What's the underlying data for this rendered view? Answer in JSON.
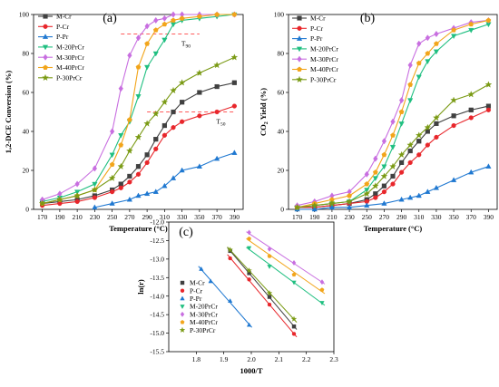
{
  "colors": {
    "M-Cr": "#404040",
    "P-Cr": "#e8262b",
    "P-Pr": "#1f78d1",
    "M-20PrCr": "#1fbf80",
    "M-30PrCr": "#c86ee0",
    "M-40PrCr": "#f2a51a",
    "P-30PrCr": "#7a9a14",
    "ref_line": "#ff5a5a"
  },
  "chart_data": [
    {
      "type": "line",
      "panel_label": "(a)",
      "xlabel": "Temperature (°C)",
      "ylabel": "1,2-DCE Conversion (%)",
      "xlim": [
        160,
        400
      ],
      "ylim": [
        0,
        100
      ],
      "xticks": [
        170,
        190,
        210,
        230,
        250,
        270,
        290,
        310,
        330,
        350,
        370,
        390
      ],
      "yticks": [
        0,
        20,
        40,
        60,
        80,
        100
      ],
      "legend_position": "top-left",
      "annotations": [
        {
          "text": "T90",
          "y": 90,
          "x_range": [
            260,
            350
          ]
        },
        {
          "text": "T50",
          "y": 50,
          "x_range": [
            290,
            390
          ]
        }
      ],
      "series": [
        {
          "name": "M-Cr",
          "marker": "square",
          "x": [
            170,
            190,
            210,
            230,
            250,
            260,
            270,
            280,
            290,
            300,
            310,
            320,
            330,
            350,
            370,
            390
          ],
          "y": [
            3,
            4,
            5,
            7,
            10,
            13,
            17,
            22,
            28,
            36,
            43,
            50,
            55,
            60,
            63,
            65
          ]
        },
        {
          "name": "P-Cr",
          "marker": "circle",
          "x": [
            170,
            190,
            210,
            230,
            250,
            260,
            270,
            280,
            290,
            300,
            310,
            320,
            330,
            350,
            370,
            390
          ],
          "y": [
            2,
            3,
            4,
            6,
            9,
            11,
            14,
            18,
            24,
            31,
            38,
            42,
            45,
            48,
            50,
            53
          ]
        },
        {
          "name": "P-Pr",
          "marker": "triangle-up",
          "x": [
            230,
            250,
            270,
            280,
            290,
            300,
            310,
            320,
            330,
            350,
            370,
            390
          ],
          "y": [
            1,
            3,
            5,
            7,
            8,
            9,
            12,
            16,
            20,
            22,
            26,
            29
          ]
        },
        {
          "name": "M-20PrCr",
          "marker": "triangle-down",
          "x": [
            170,
            190,
            210,
            230,
            250,
            260,
            270,
            280,
            290,
            300,
            310,
            320,
            330,
            350,
            370,
            390
          ],
          "y": [
            4,
            6,
            9,
            13,
            28,
            38,
            45,
            58,
            73,
            80,
            87,
            95,
            97,
            98,
            99,
            100
          ]
        },
        {
          "name": "M-30PrCr",
          "marker": "diamond",
          "x": [
            170,
            190,
            210,
            230,
            250,
            260,
            270,
            280,
            290,
            300,
            310,
            320,
            330,
            350,
            370,
            390
          ],
          "y": [
            5,
            8,
            13,
            21,
            40,
            62,
            79,
            88,
            94,
            97,
            98,
            100,
            100,
            100,
            100,
            100
          ]
        },
        {
          "name": "M-40PrCr",
          "marker": "pentagon",
          "x": [
            170,
            190,
            210,
            230,
            250,
            260,
            270,
            280,
            290,
            300,
            310,
            320,
            330,
            350,
            370,
            390
          ],
          "y": [
            3,
            5,
            7,
            10,
            23,
            33,
            46,
            73,
            85,
            92,
            95,
            97,
            98,
            99,
            100,
            100
          ]
        },
        {
          "name": "P-30PrCr",
          "marker": "star",
          "x": [
            170,
            190,
            210,
            230,
            250,
            260,
            270,
            280,
            290,
            300,
            310,
            320,
            330,
            350,
            370,
            390
          ],
          "y": [
            3,
            5,
            7,
            10,
            16,
            22,
            30,
            37,
            44,
            49,
            55,
            61,
            65,
            70,
            74,
            78
          ]
        }
      ]
    },
    {
      "type": "line",
      "panel_label": "(b)",
      "xlabel": "Temperature (°C)",
      "ylabel": "CO2 Yield (%)",
      "xlim": [
        160,
        400
      ],
      "ylim": [
        0,
        100
      ],
      "xticks": [
        170,
        190,
        210,
        230,
        250,
        270,
        290,
        310,
        330,
        350,
        370,
        390
      ],
      "yticks": [
        0,
        20,
        40,
        60,
        80,
        100
      ],
      "legend_position": "top-left",
      "series": [
        {
          "name": "M-Cr",
          "marker": "square",
          "x": [
            170,
            190,
            210,
            230,
            250,
            260,
            270,
            280,
            290,
            300,
            310,
            320,
            330,
            350,
            370,
            390
          ],
          "y": [
            1,
            1,
            2,
            3,
            5,
            8,
            12,
            17,
            24,
            30,
            35,
            40,
            44,
            48,
            51,
            53
          ]
        },
        {
          "name": "P-Cr",
          "marker": "circle",
          "x": [
            170,
            190,
            210,
            230,
            250,
            260,
            270,
            280,
            290,
            300,
            310,
            320,
            330,
            350,
            370,
            390
          ],
          "y": [
            1,
            1,
            2,
            3,
            4,
            6,
            9,
            13,
            19,
            24,
            28,
            33,
            37,
            43,
            47,
            51
          ]
        },
        {
          "name": "P-Pr",
          "marker": "triangle-up",
          "x": [
            170,
            190,
            210,
            230,
            250,
            270,
            290,
            300,
            310,
            320,
            330,
            350,
            370,
            390
          ],
          "y": [
            0,
            0,
            1,
            1,
            2,
            3,
            5,
            6,
            7,
            9,
            11,
            15,
            19,
            22
          ]
        },
        {
          "name": "M-20PrCr",
          "marker": "triangle-down",
          "x": [
            170,
            190,
            210,
            230,
            250,
            260,
            270,
            280,
            290,
            300,
            310,
            320,
            330,
            350,
            370,
            390
          ],
          "y": [
            1,
            2,
            3,
            4,
            10,
            16,
            22,
            32,
            44,
            56,
            68,
            76,
            81,
            89,
            92,
            95
          ]
        },
        {
          "name": "M-30PrCr",
          "marker": "diamond",
          "x": [
            170,
            190,
            210,
            230,
            250,
            260,
            270,
            280,
            290,
            300,
            310,
            320,
            330,
            350,
            370,
            390
          ],
          "y": [
            2,
            4,
            7,
            9,
            18,
            26,
            35,
            45,
            56,
            74,
            85,
            88,
            90,
            93,
            96,
            97
          ]
        },
        {
          "name": "M-40PrCr",
          "marker": "pentagon",
          "x": [
            170,
            190,
            210,
            230,
            250,
            260,
            270,
            280,
            290,
            300,
            310,
            320,
            330,
            350,
            370,
            390
          ],
          "y": [
            1,
            3,
            5,
            7,
            13,
            19,
            28,
            38,
            50,
            64,
            75,
            80,
            85,
            92,
            95,
            97
          ]
        },
        {
          "name": "P-30PrCr",
          "marker": "star",
          "x": [
            170,
            190,
            210,
            230,
            250,
            260,
            270,
            280,
            290,
            300,
            310,
            320,
            330,
            350,
            370,
            390
          ],
          "y": [
            1,
            2,
            3,
            4,
            8,
            12,
            17,
            22,
            28,
            33,
            38,
            42,
            47,
            56,
            59,
            64
          ]
        }
      ]
    },
    {
      "type": "scatter",
      "panel_label": "(c)",
      "xlabel": "1000/T",
      "ylabel": "ln(r)",
      "xlim": [
        1.7,
        2.3
      ],
      "ylim": [
        -15.5,
        -12.0
      ],
      "xticks": [
        1.8,
        1.9,
        2.0,
        2.1,
        2.2,
        2.3
      ],
      "yticks": [
        -12.0,
        -12.5,
        -13.0,
        -13.5,
        -14.0,
        -14.5,
        -15.0,
        -15.5
      ],
      "legend_position": "center-left",
      "series": [
        {
          "name": "M-Cr",
          "marker": "square",
          "x": [
            1.923,
            1.992,
            2.066,
            2.155
          ],
          "y": [
            -12.78,
            -13.38,
            -14.02,
            -14.82
          ]
        },
        {
          "name": "P-Cr",
          "marker": "circle",
          "x": [
            1.923,
            1.992,
            2.066,
            2.155
          ],
          "y": [
            -12.98,
            -13.55,
            -14.23,
            -15.02
          ]
        },
        {
          "name": "P-Pr",
          "marker": "triangle-up",
          "x": [
            1.818,
            1.852,
            1.923,
            1.992
          ],
          "y": [
            -13.27,
            -13.6,
            -14.13,
            -14.78
          ]
        },
        {
          "name": "M-20PrCr",
          "marker": "triangle-down",
          "x": [
            1.992,
            2.066,
            2.155,
            2.257
          ],
          "y": [
            -12.7,
            -13.2,
            -13.63,
            -14.18
          ]
        },
        {
          "name": "M-30PrCr",
          "marker": "diamond",
          "x": [
            1.992,
            2.066,
            2.155,
            2.257
          ],
          "y": [
            -12.28,
            -12.73,
            -13.1,
            -13.62
          ]
        },
        {
          "name": "M-40PrCr",
          "marker": "pentagon",
          "x": [
            1.992,
            2.066,
            2.155,
            2.257
          ],
          "y": [
            -12.45,
            -12.92,
            -13.42,
            -13.83
          ]
        },
        {
          "name": "P-30PrCr",
          "marker": "star",
          "x": [
            1.923,
            1.992,
            2.066,
            2.155
          ],
          "y": [
            -12.75,
            -13.31,
            -13.92,
            -14.62
          ]
        }
      ]
    }
  ]
}
